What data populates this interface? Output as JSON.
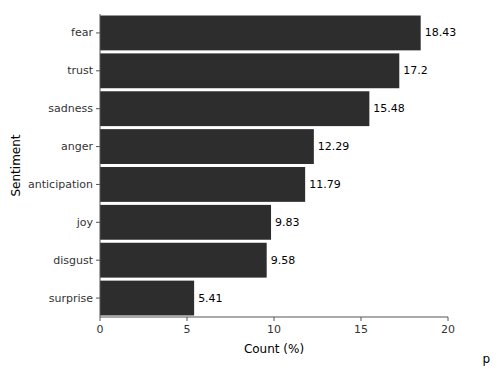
{
  "chart_data": {
    "type": "bar",
    "orientation": "horizontal",
    "categories": [
      "surprise",
      "disgust",
      "joy",
      "anticipation",
      "anger",
      "sadness",
      "trust",
      "fear"
    ],
    "values": [
      5.41,
      9.58,
      9.83,
      11.79,
      12.29,
      15.48,
      17.2,
      18.43
    ],
    "color": "#2d2d2d",
    "xlabel": "Count (%)",
    "ylabel": "Sentiment",
    "xlim": [
      0,
      20
    ],
    "xticks": [
      0,
      5,
      10,
      15,
      20
    ],
    "data_labels": true,
    "grid": false,
    "caption": "p"
  }
}
